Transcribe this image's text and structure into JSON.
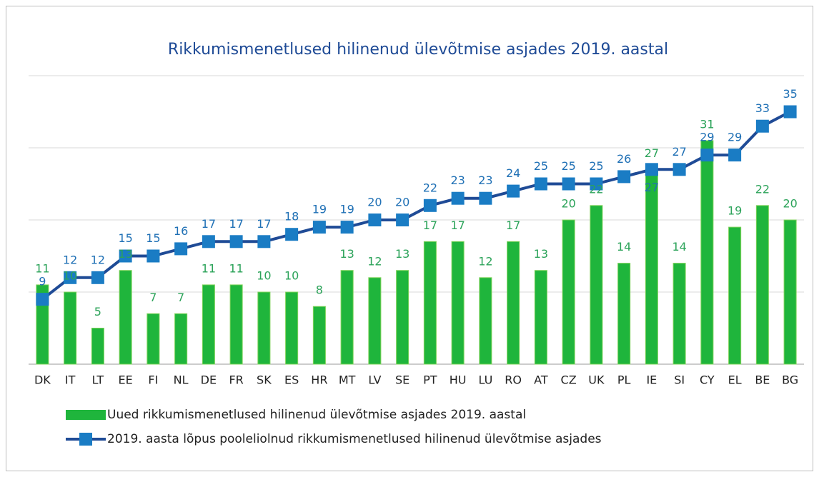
{
  "chart_data": {
    "type": "bar",
    "title": "Rikkumismenetlused hilinenud ülevõtmise asjades 2019. aastal",
    "categories": [
      "DK",
      "IT",
      "LT",
      "EE",
      "FI",
      "NL",
      "DE",
      "FR",
      "SK",
      "ES",
      "HR",
      "MT",
      "LV",
      "SE",
      "PT",
      "HU",
      "LU",
      "RO",
      "AT",
      "CZ",
      "UK",
      "PL",
      "IE",
      "SI",
      "CY",
      "EL",
      "BE",
      "BG"
    ],
    "series": [
      {
        "name": "Uued rikkumismenetlused hilinenud ülevõtmise asjades 2019. aastal",
        "type": "bar",
        "color": "#1fb53c",
        "label_color": "#2ca35a",
        "values": [
          11,
          10,
          5,
          13,
          7,
          7,
          11,
          11,
          10,
          10,
          8,
          13,
          12,
          13,
          17,
          17,
          12,
          17,
          13,
          20,
          22,
          14,
          27,
          14,
          31,
          19,
          22,
          20
        ]
      },
      {
        "name": "2019. aasta lõpus pooleliolnud rikkumismenetlused hilinenud ülevõtmise asjades",
        "type": "line",
        "color": "#1f4b96",
        "marker_color": "#1a7cc4",
        "label_color": "#1f70b5",
        "values": [
          9,
          12,
          12,
          15,
          15,
          16,
          17,
          17,
          17,
          18,
          19,
          19,
          20,
          20,
          22,
          23,
          23,
          24,
          25,
          25,
          25,
          26,
          27,
          27,
          29,
          29,
          33,
          35
        ]
      }
    ],
    "ylim": [
      0,
      40
    ],
    "yticks": [
      0,
      10,
      20,
      30,
      40
    ],
    "grid": true
  }
}
